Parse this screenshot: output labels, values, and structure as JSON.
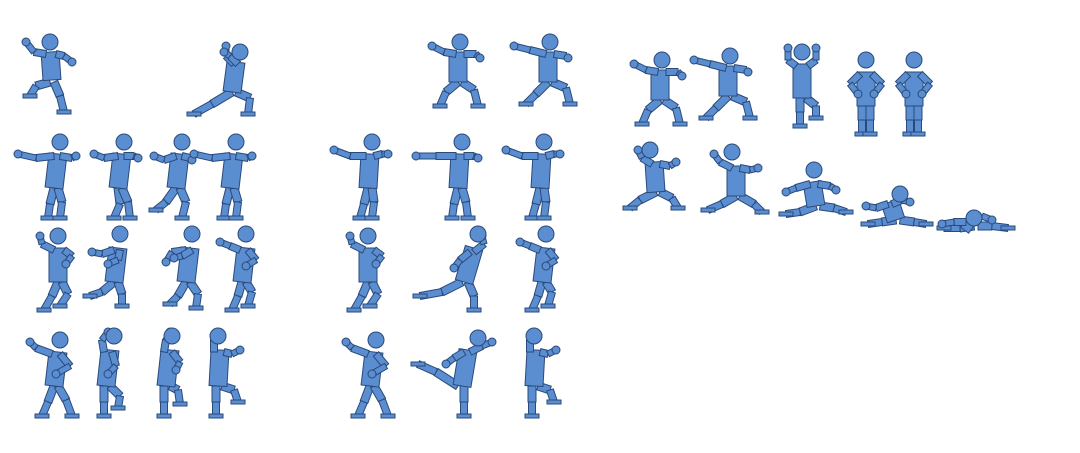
{
  "sprite_sheet": {
    "background": "#ffffff",
    "body_color": "#5b8dd1",
    "outline_color": "#2a4a7a",
    "animations": [
      {
        "name": "jump",
        "frames": 1
      },
      {
        "name": "lunge",
        "frames": 1
      },
      {
        "name": "punch-stance",
        "frames": 2
      },
      {
        "name": "fighting-stance",
        "frames": 2
      },
      {
        "name": "raise-arms",
        "frames": 1
      },
      {
        "name": "idle-hands-on-hips",
        "frames": 2
      },
      {
        "name": "walk-punch",
        "frames": 4
      },
      {
        "name": "jab",
        "frames": 3
      },
      {
        "name": "knockdown",
        "frames": 5
      },
      {
        "name": "crouch-walk",
        "frames": 4
      },
      {
        "name": "kick-wind",
        "frames": 3
      },
      {
        "name": "block-walk",
        "frames": 4
      },
      {
        "name": "high-kick",
        "frames": 3
      }
    ]
  }
}
